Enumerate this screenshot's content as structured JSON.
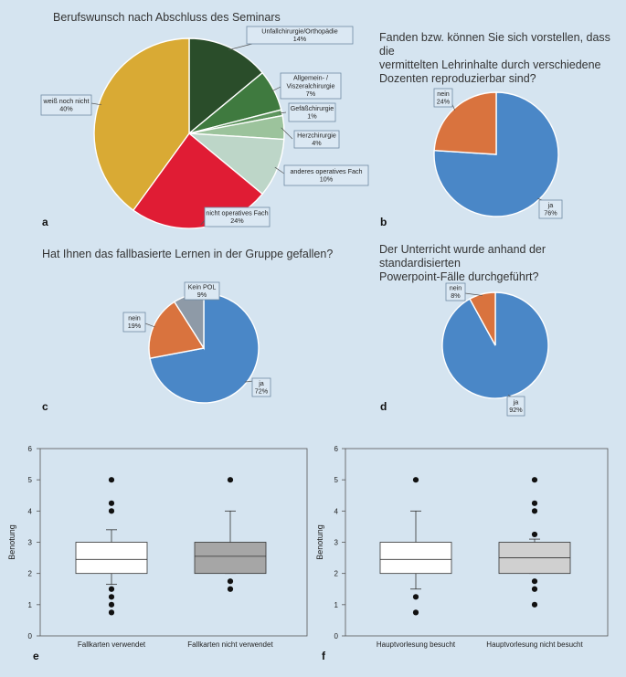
{
  "chart_data": [
    {
      "panel": "a",
      "type": "pie",
      "title": "Berufswunsch nach Abschluss des Seminars",
      "slices": [
        {
          "label": "Unfallchirurgie/Orthopädie",
          "value": 14,
          "pct": "14%",
          "color": "#2a4d2a"
        },
        {
          "label": "Allgemein- / Viszeralchirurgie",
          "label_lines": [
            "Allgemein- /",
            "Viszeralchirurgie"
          ],
          "value": 7,
          "pct": "7%",
          "color": "#3f7a3f"
        },
        {
          "label": "Gefäßchirurgie",
          "value": 1,
          "pct": "1%",
          "color": "#5e955e"
        },
        {
          "label": "Herzchirurgie",
          "value": 4,
          "pct": "4%",
          "color": "#9cc39c"
        },
        {
          "label": "anderes operatives Fach",
          "value": 10,
          "pct": "10%",
          "color": "#bdd6c8"
        },
        {
          "label": "nicht operatives Fach",
          "value": 24,
          "pct": "24%",
          "color": "#e01c34"
        },
        {
          "label": "weiß noch nicht",
          "value": 40,
          "pct": "40%",
          "color": "#d9aa34"
        }
      ]
    },
    {
      "panel": "b",
      "type": "pie",
      "title_lines": [
        "Fanden bzw. können Sie sich vorstellen, dass die",
        "vermittelten Lehrinhalte durch verschiedene",
        "Dozenten reproduzierbar sind?"
      ],
      "slices": [
        {
          "label": "ja",
          "value": 76,
          "pct": "76%",
          "color": "#4a87c7"
        },
        {
          "label": "nein",
          "value": 24,
          "pct": "24%",
          "color": "#d9733e"
        }
      ]
    },
    {
      "panel": "c",
      "type": "pie",
      "title": "Hat Ihnen das fallbasierte Lernen in der Gruppe gefallen?",
      "slices": [
        {
          "label": "ja",
          "value": 72,
          "pct": "72%",
          "color": "#4a87c7"
        },
        {
          "label": "nein",
          "value": 19,
          "pct": "19%",
          "color": "#d9733e"
        },
        {
          "label": "Kein POL",
          "value": 9,
          "pct": "9%",
          "color": "#8e9aa7"
        }
      ]
    },
    {
      "panel": "d",
      "type": "pie",
      "title_lines": [
        "Der Unterricht wurde anhand der standardisierten",
        "Powerpoint-Fälle durchgeführt?"
      ],
      "slices": [
        {
          "label": "ja",
          "value": 92,
          "pct": "92%",
          "color": "#4a87c7"
        },
        {
          "label": "nein",
          "value": 8,
          "pct": "8%",
          "color": "#d9733e"
        }
      ]
    },
    {
      "panel": "e",
      "type": "box",
      "ylabel": "Benotung",
      "ylim": [
        0,
        6
      ],
      "yticks": [
        "0",
        "1",
        "2",
        "3",
        "4",
        "5",
        "6"
      ],
      "boxes": [
        {
          "label": "Fallkarten verwendet",
          "q1": 2,
          "median": 2.45,
          "q3": 3,
          "whisker_low": 1.65,
          "whisker_high": 3.4,
          "outliers": [
            0.75,
            1,
            1.25,
            1.5,
            4,
            4.25,
            5
          ],
          "color": "#ffffff"
        },
        {
          "label": "Fallkarten nicht verwendet",
          "q1": 2,
          "median": 2.55,
          "q3": 3,
          "whisker_low": 2,
          "whisker_high": 4,
          "outliers": [
            1.5,
            1.75,
            5
          ],
          "color": "#a6a6a6"
        }
      ]
    },
    {
      "panel": "f",
      "type": "box",
      "ylabel": "Benotung",
      "ylim": [
        0,
        6
      ],
      "yticks": [
        "0",
        "1",
        "2",
        "3",
        "4",
        "5",
        "6"
      ],
      "boxes": [
        {
          "label": "Hauptvorlesung besucht",
          "q1": 2,
          "median": 2.45,
          "q3": 3,
          "whisker_low": 1.5,
          "whisker_high": 4,
          "outliers": [
            0.75,
            1.25,
            5
          ],
          "color": "#ffffff"
        },
        {
          "label": "Hauptvorlesung nicht besucht",
          "q1": 2,
          "median": 2.5,
          "q3": 3,
          "whisker_low": 2,
          "whisker_high": 3.1,
          "outliers": [
            1,
            1.5,
            1.75,
            3.25,
            4,
            4.25,
            5
          ],
          "color": "#d0d0d0"
        }
      ]
    }
  ]
}
